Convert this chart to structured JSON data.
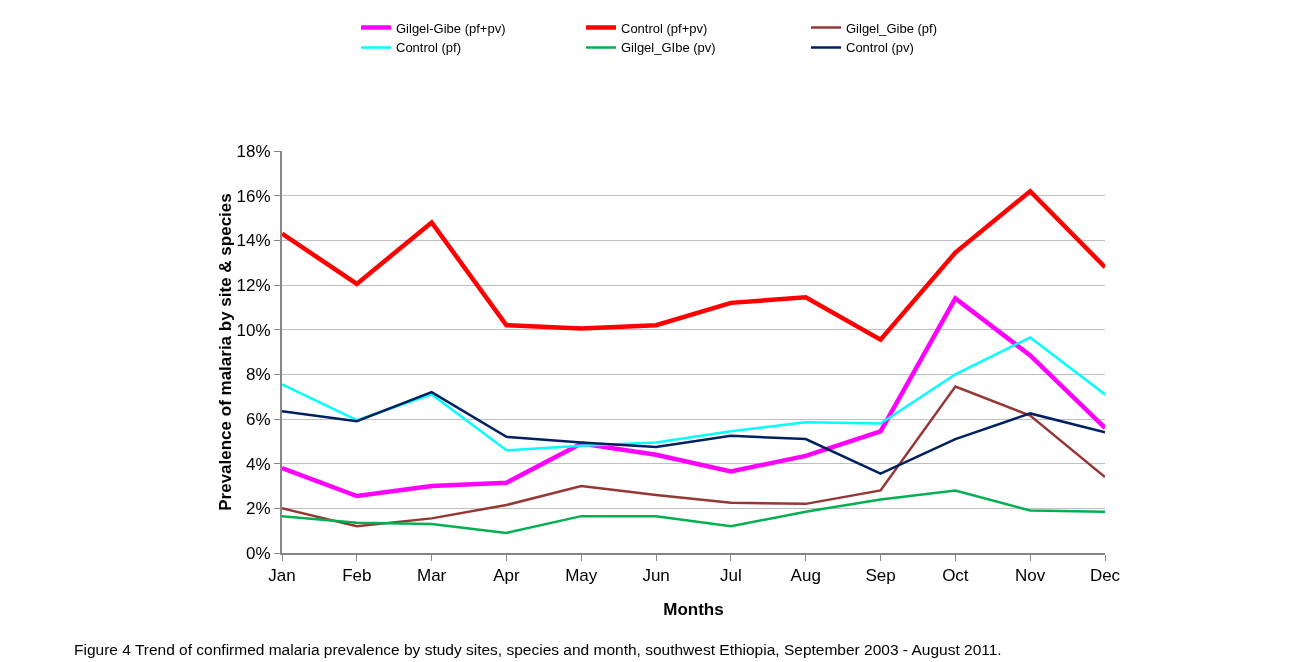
{
  "chart_data": {
    "type": "line",
    "xlabel": "Months",
    "ylabel": "Prevalence of malaria by site & species",
    "annotations": [
      "Figure 4 Trend of confirmed malaria prevalence by study sites, species and month, southwest Ethiopia, September 2003 - August 2011."
    ],
    "categories": [
      "Jan",
      "Feb",
      "Mar",
      "Apr",
      "May",
      "Jun",
      "Jul",
      "Aug",
      "Sep",
      "Oct",
      "Nov",
      "Dec"
    ],
    "series": [
      {
        "name": "Gilgel-Gibe (pf+pv)",
        "color": "#ff00ff",
        "values": [
          3.8,
          2.55,
          3.0,
          3.15,
          4.9,
          4.4,
          3.65,
          4.35,
          5.45,
          11.4,
          8.85,
          5.6
        ]
      },
      {
        "name": "Control (pf+pv)",
        "color": "#ff0000",
        "values": [
          14.3,
          12.05,
          14.8,
          10.2,
          10.05,
          10.2,
          11.2,
          11.45,
          9.55,
          13.45,
          16.2,
          12.8
        ]
      },
      {
        "name": "Gilgel_Gibe (pf)",
        "color": "#953735",
        "values": [
          2.0,
          1.2,
          1.55,
          2.15,
          3.0,
          2.6,
          2.25,
          2.2,
          2.8,
          7.45,
          6.15,
          3.4
        ]
      },
      {
        "name": "Control (pf)",
        "color": "#00ffff",
        "values": [
          7.55,
          5.95,
          7.1,
          4.6,
          4.8,
          4.95,
          5.45,
          5.85,
          5.8,
          8.0,
          9.65,
          7.1
        ]
      },
      {
        "name": "Gilgel_GIbe (pv)",
        "color": "#00b050",
        "values": [
          1.65,
          1.35,
          1.3,
          0.9,
          1.65,
          1.65,
          1.2,
          1.85,
          2.4,
          2.8,
          1.9,
          1.85
        ]
      },
      {
        "name": "Control (pv)",
        "color": "#002060",
        "values": [
          6.35,
          5.9,
          7.2,
          5.2,
          4.95,
          4.75,
          5.25,
          5.1,
          3.55,
          5.1,
          6.25,
          5.4
        ]
      }
    ],
    "ylim": [
      0,
      18
    ],
    "yticks": [
      {
        "value": 0,
        "label": "0%"
      },
      {
        "value": 2,
        "label": "2%"
      },
      {
        "value": 4,
        "label": "4%"
      },
      {
        "value": 6,
        "label": "6%"
      },
      {
        "value": 8,
        "label": "8%"
      },
      {
        "value": 10,
        "label": "10%"
      },
      {
        "value": 12,
        "label": "12%"
      },
      {
        "value": 14,
        "label": "14%"
      },
      {
        "value": 16,
        "label": "16%"
      },
      {
        "value": 18,
        "label": "18%"
      }
    ],
    "grid": "y",
    "legend": "top",
    "marker": "none",
    "line_style": "solid"
  }
}
